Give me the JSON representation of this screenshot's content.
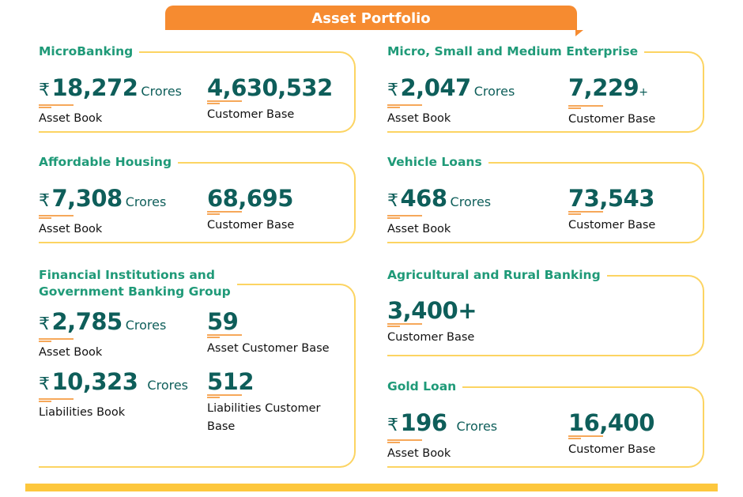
{
  "header": {
    "title": "Asset Portfolio"
  },
  "currency_symbol": "₹",
  "unit": "Crores",
  "cards": {
    "microbanking": {
      "title": "MicroBanking",
      "asset_book": "18,272",
      "asset_label": "Asset Book",
      "customers": "4,630,532",
      "customers_label": "Customer Base"
    },
    "affordable_housing": {
      "title": "Affordable Housing",
      "asset_book": "7,308",
      "asset_label": "Asset Book",
      "customers": "68,695",
      "customers_label": "Customer Base"
    },
    "fig": {
      "title_line1": "Financial Institutions and",
      "title_line2": "Government Banking Group",
      "asset_book": "2,785",
      "asset_label": "Asset Book",
      "asset_customers": "59",
      "asset_customers_label": "Asset Customer Base",
      "liabilities_book": "10,323",
      "liabilities_label": "Liabilities Book",
      "liabilities_customers": "512",
      "liabilities_customers_label_line1": "Liabilities Customer",
      "liabilities_customers_label_line2": "Base"
    },
    "msme": {
      "title": "Micro, Small and Medium Enterprise",
      "asset_book": "2,047",
      "asset_label": "Asset Book",
      "customers": "7,229",
      "customers_suffix": "+",
      "customers_label": "Customer Base"
    },
    "vehicle": {
      "title": "Vehicle Loans",
      "asset_book": "468",
      "asset_label": "Asset Book",
      "customers": "73,543",
      "customers_label": "Customer Base"
    },
    "agri": {
      "title": "Agricultural and Rural Banking",
      "customers": "3,400+",
      "customers_label": "Customer Base"
    },
    "gold": {
      "title": "Gold Loan",
      "asset_book": "196",
      "asset_label": "Asset Book",
      "customers": "16,400",
      "customers_label": "Customer Base"
    }
  }
}
